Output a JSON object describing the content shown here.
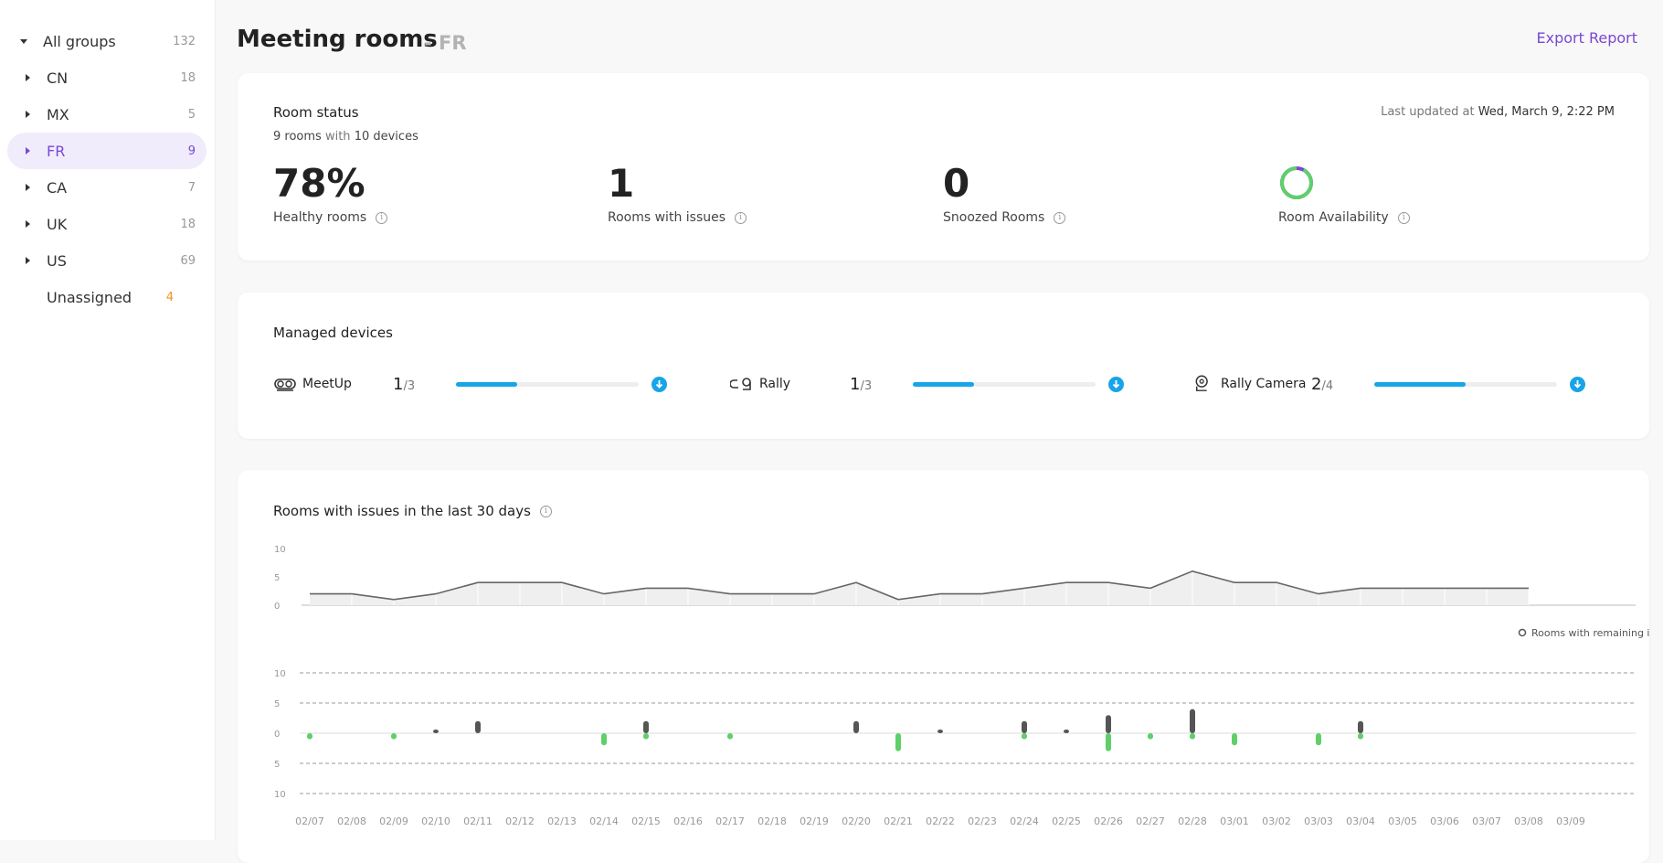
{
  "sidebar": {
    "groups": [
      {
        "name": "All groups",
        "count": "132"
      },
      {
        "name": "CN",
        "count": "18"
      },
      {
        "name": "MX",
        "count": "5"
      },
      {
        "name": "FR",
        "count": "9"
      },
      {
        "name": "CA",
        "count": "7"
      },
      {
        "name": "UK",
        "count": "18"
      },
      {
        "name": "US",
        "count": "69"
      },
      {
        "name": "Unassigned",
        "count": "4"
      }
    ]
  },
  "header": {
    "title": "Meeting rooms",
    "subtitle": "- FR",
    "export_label": "Export Report"
  },
  "room_status": {
    "title": "Room status",
    "rooms_count": "9 rooms",
    "with_word": "with",
    "devices_count": "10 devices",
    "last_updated_label": "Last updated at",
    "last_updated_value": "Wed, March 9, 2:22 PM",
    "stats": [
      {
        "value": "78%",
        "label": "Healthy rooms"
      },
      {
        "value": "1",
        "label": "Rooms with issues"
      },
      {
        "value": "0",
        "label": "Snoozed Rooms"
      },
      {
        "value": "",
        "label": "Room Availability"
      }
    ],
    "availability_fraction": 0.92,
    "colors": {
      "available": "#5fcf6a",
      "unavailable": "#7a48d3"
    }
  },
  "managed_devices": {
    "title": "Managed devices",
    "devices": [
      {
        "name": "MeetUp",
        "count": "1",
        "total": "/3",
        "icon": "meetup-icon",
        "fraction": 0.333
      },
      {
        "name": "Rally",
        "count": "1",
        "total": "/3",
        "icon": "rally-icon",
        "fraction": 0.333
      },
      {
        "name": "Rally Camera",
        "count": "2",
        "total": "/4",
        "icon": "rally-camera-icon",
        "fraction": 0.5
      }
    ]
  },
  "issues_chart": {
    "title": "Rooms with issues in the last 30 days",
    "legend_label": "Rooms with remaining issues"
  },
  "chart_data": [
    {
      "type": "area",
      "categories": [
        "02/07",
        "02/08",
        "02/09",
        "02/10",
        "02/11",
        "02/12",
        "02/13",
        "02/14",
        "02/15",
        "02/16",
        "02/17",
        "02/18",
        "02/19",
        "02/20",
        "02/21",
        "02/22",
        "02/23",
        "02/24",
        "02/25",
        "02/26",
        "02/27",
        "02/28",
        "03/01",
        "03/02",
        "03/03",
        "03/04",
        "03/05",
        "03/06",
        "03/07",
        "03/08",
        "03/09"
      ],
      "values": [
        2,
        2,
        1,
        2,
        4,
        4,
        4,
        2,
        3,
        3,
        2,
        2,
        2,
        4,
        1,
        2,
        2,
        3,
        4,
        4,
        3,
        6,
        4,
        4,
        2,
        3,
        3,
        3,
        3,
        3,
        null
      ],
      "yticks": [
        0,
        5,
        10
      ],
      "ylim": [
        0,
        10
      ],
      "grid": true
    },
    {
      "type": "bar",
      "categories": [
        "02/07",
        "02/08",
        "02/09",
        "02/10",
        "02/11",
        "02/12",
        "02/13",
        "02/14",
        "02/15",
        "02/16",
        "02/17",
        "02/18",
        "02/19",
        "02/20",
        "02/21",
        "02/22",
        "02/23",
        "02/24",
        "02/25",
        "02/26",
        "02/27",
        "02/28",
        "03/01",
        "03/02",
        "03/03",
        "03/04",
        "03/05",
        "03/06",
        "03/07",
        "03/08",
        "03/09"
      ],
      "series": [
        {
          "name": "Rooms with remaining issues",
          "color": "#555555",
          "values": [
            0,
            0,
            0,
            0.5,
            2,
            0,
            0,
            0,
            2,
            0,
            0,
            0,
            0,
            2,
            0,
            0.5,
            0,
            2,
            0.5,
            3,
            0,
            4,
            0,
            0,
            0,
            2,
            0,
            0,
            0,
            0,
            0
          ]
        },
        {
          "color": "#5fcf6a",
          "values": [
            1,
            0,
            1,
            0,
            0,
            0,
            0,
            2,
            1,
            0,
            1,
            0,
            0,
            0,
            3,
            0,
            0,
            1,
            0,
            3,
            1,
            1,
            2,
            0,
            2,
            1,
            0,
            0,
            0,
            0,
            0
          ]
        }
      ],
      "yticks_upper": [
        0,
        5,
        10
      ],
      "yticks_lower": [
        5,
        10
      ],
      "ylim": [
        -10,
        10
      ],
      "legend_position": "top-right",
      "grid": true
    }
  ]
}
